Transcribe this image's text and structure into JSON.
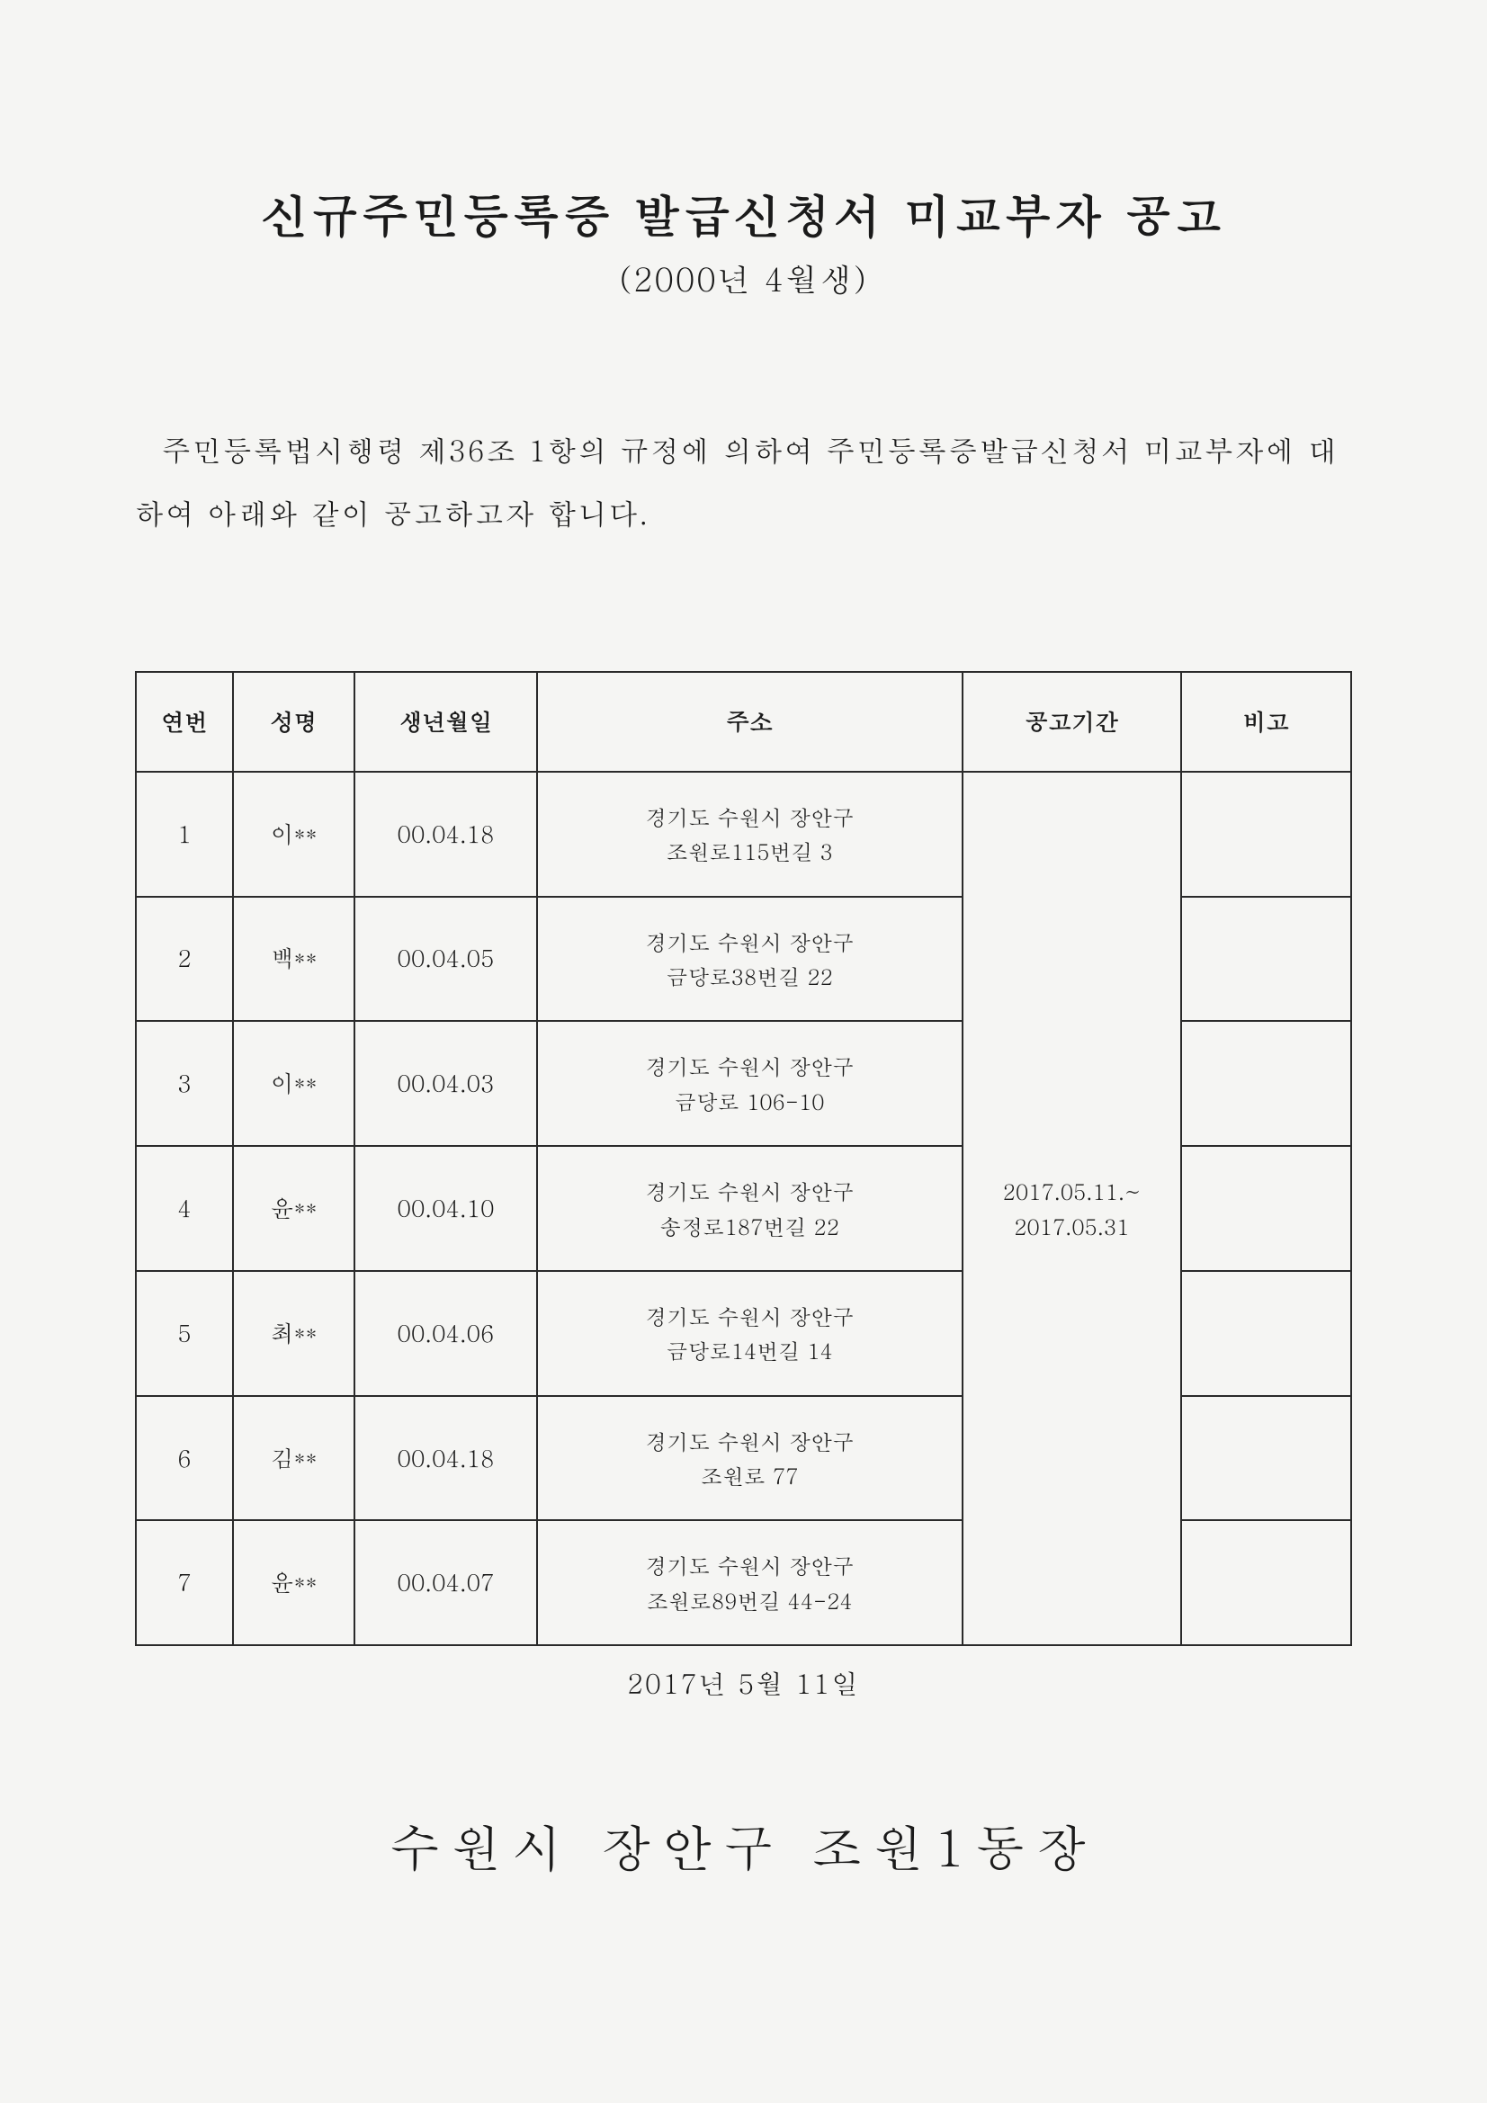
{
  "title": "신규주민등록증 발급신청서 미교부자 공고",
  "subtitle": "(2000년 4월생)",
  "body": "주민등록법시행령 제36조 1항의 규정에 의하여 주민등록증발급신청서 미교부자에 대하여 아래와 같이 공고하고자 합니다.",
  "table": {
    "headers": {
      "num": "연번",
      "name": "성명",
      "dob": "생년월일",
      "addr": "주소",
      "period": "공고기간",
      "note": "비고"
    },
    "rows": [
      {
        "num": "1",
        "name": "이**",
        "dob": "00.04.18",
        "addr_line1": "경기도 수원시 장안구",
        "addr_line2": "조원로115번길 3",
        "note": ""
      },
      {
        "num": "2",
        "name": "백**",
        "dob": "00.04.05",
        "addr_line1": "경기도 수원시 장안구",
        "addr_line2": "금당로38번길 22",
        "note": ""
      },
      {
        "num": "3",
        "name": "이**",
        "dob": "00.04.03",
        "addr_line1": "경기도 수원시 장안구",
        "addr_line2": "금당로 106-10",
        "note": ""
      },
      {
        "num": "4",
        "name": "윤**",
        "dob": "00.04.10",
        "addr_line1": "경기도 수원시 장안구",
        "addr_line2": "송정로187번길 22",
        "note": ""
      },
      {
        "num": "5",
        "name": "최**",
        "dob": "00.04.06",
        "addr_line1": "경기도 수원시 장안구",
        "addr_line2": "금당로14번길 14",
        "note": ""
      },
      {
        "num": "6",
        "name": "김**",
        "dob": "00.04.18",
        "addr_line1": "경기도 수원시 장안구",
        "addr_line2": "조원로 77",
        "note": ""
      },
      {
        "num": "7",
        "name": "윤**",
        "dob": "00.04.07",
        "addr_line1": "경기도 수원시 장안구",
        "addr_line2": "조원로89번길 44-24",
        "note": ""
      }
    ],
    "period_line1": "2017.05.11.~",
    "period_line2": "2017.05.31"
  },
  "date_line": "2017년 5월 11일",
  "signature": "수원시 장안구 조원1동장",
  "colors": {
    "background": "#f5f5f3",
    "text": "#1a1a1a",
    "border": "#2a2a2a"
  }
}
